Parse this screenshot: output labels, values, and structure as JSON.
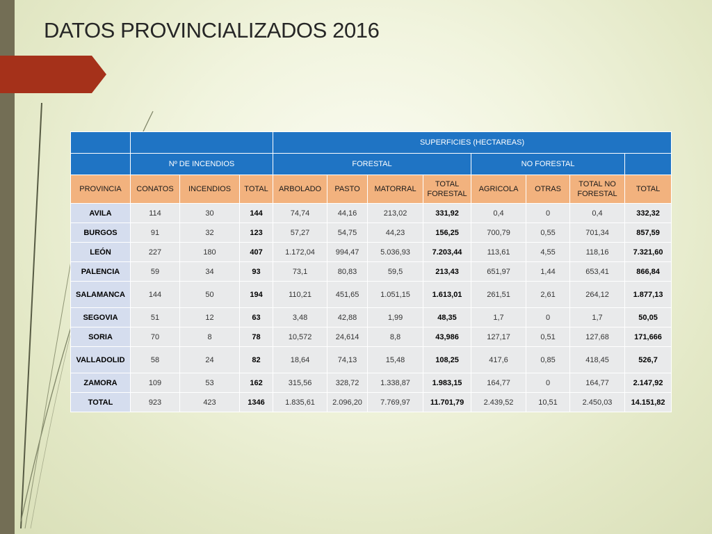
{
  "slide": {
    "title": "DATOS PROVINCIALIZADOS 2016"
  },
  "colors": {
    "table_header": "#1f74c4",
    "column_header": "#f2b27e",
    "row_fill": "#e9eaeb",
    "province_fill": "#d5ddee",
    "side_bar": "#736e55",
    "arrow": "#a5311a"
  },
  "table": {
    "group_headers": {
      "superficies": "SUPERFICIES (HECTAREAS)",
      "incendios": "Nº DE INCENDIOS",
      "forestal": "FORESTAL",
      "no_forestal": "NO FORESTAL"
    },
    "columns": [
      "PROVINCIA",
      "CONATOS",
      "INCENDIOS",
      "TOTAL",
      "ARBOLADO",
      "PASTO",
      "MATORRAL",
      "TOTAL FORESTAL",
      "AGRICOLA",
      "OTRAS",
      "TOTAL NO FORESTAL",
      "TOTAL"
    ],
    "rows": [
      [
        "AVILA",
        "114",
        "30",
        "144",
        "74,74",
        "44,16",
        "213,02",
        "331,92",
        "0,4",
        "0",
        "0,4",
        "332,32"
      ],
      [
        "BURGOS",
        "91",
        "32",
        "123",
        "57,27",
        "54,75",
        "44,23",
        "156,25",
        "700,79",
        "0,55",
        "701,34",
        "857,59"
      ],
      [
        "LEÓN",
        "227",
        "180",
        "407",
        "1.172,04",
        "994,47",
        "5.036,93",
        "7.203,44",
        "113,61",
        "4,55",
        "118,16",
        "7.321,60"
      ],
      [
        "PALENCIA",
        "59",
        "34",
        "93",
        "73,1",
        "80,83",
        "59,5",
        "213,43",
        "651,97",
        "1,44",
        "653,41",
        "866,84"
      ],
      [
        "SALAMANCA",
        "144",
        "50",
        "194",
        "110,21",
        "451,65",
        "1.051,15",
        "1.613,01",
        "261,51",
        "2,61",
        "264,12",
        "1.877,13"
      ],
      [
        "SEGOVIA",
        "51",
        "12",
        "63",
        "3,48",
        "42,88",
        "1,99",
        "48,35",
        "1,7",
        "0",
        "1,7",
        "50,05"
      ],
      [
        "SORIA",
        "70",
        "8",
        "78",
        "10,572",
        "24,614",
        "8,8",
        "43,986",
        "127,17",
        "0,51",
        "127,68",
        "171,666"
      ],
      [
        "VALLADOLID",
        "58",
        "24",
        "82",
        "18,64",
        "74,13",
        "15,48",
        "108,25",
        "417,6",
        "0,85",
        "418,45",
        "526,7"
      ],
      [
        "ZAMORA",
        "109",
        "53",
        "162",
        "315,56",
        "328,72",
        "1.338,87",
        "1.983,15",
        "164,77",
        "0",
        "164,77",
        "2.147,92"
      ],
      [
        "TOTAL",
        "923",
        "423",
        "1346",
        "1.835,61",
        "2.096,20",
        "7.769,97",
        "11.701,79",
        "2.439,52",
        "10,51",
        "2.450,03",
        "14.151,82"
      ]
    ]
  }
}
